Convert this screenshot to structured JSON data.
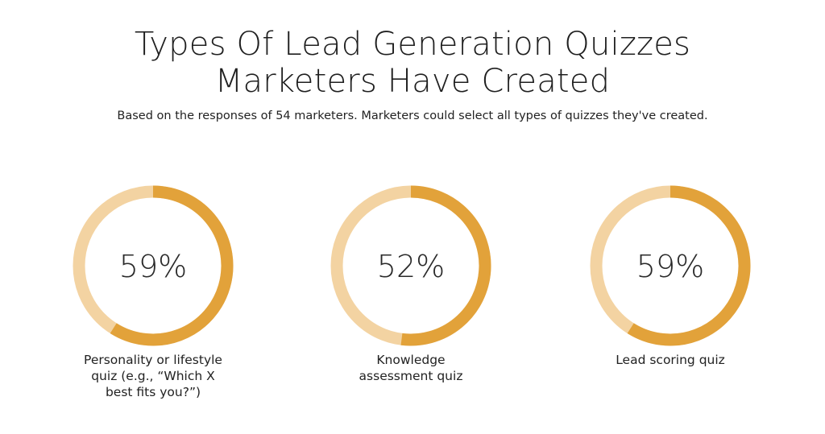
{
  "header": {
    "title_line1": "Types Of Lead Generation Quizzes",
    "title_line2": "Marketers Have Created",
    "subtitle": "Based on the responses of 54 marketers. Marketers could select all types of quizzes they've created."
  },
  "colors": {
    "filled": "#e2a23a",
    "remaining": "#f3d3a2",
    "text": "#222222"
  },
  "chart_data": {
    "type": "pie",
    "items": [
      {
        "value": 59,
        "value_label": "59%",
        "label_lines": [
          "Personality or lifestyle",
          "quiz (e.g., “Which X",
          "best fits you?”)"
        ]
      },
      {
        "value": 52,
        "value_label": "52%",
        "label_lines": [
          "Knowledge",
          "assessment quiz"
        ]
      },
      {
        "value": 59,
        "value_label": "59%",
        "label_lines": [
          "Lead scoring quiz"
        ]
      }
    ]
  }
}
